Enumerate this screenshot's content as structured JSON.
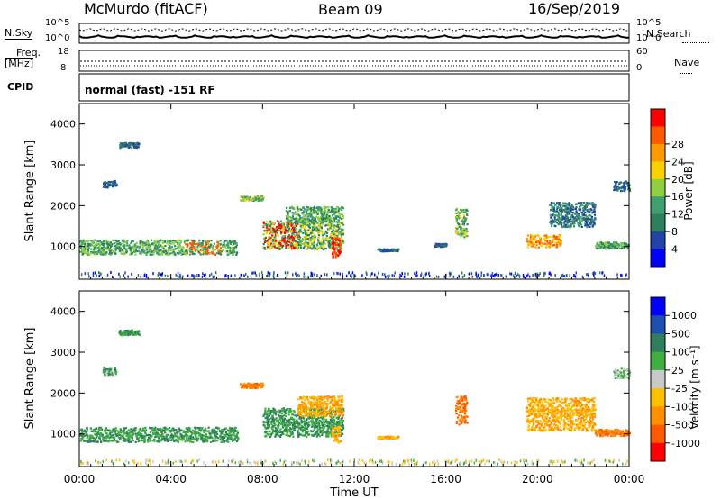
{
  "header": {
    "station": "McMurdo (fitACF)",
    "beam": "Beam 09",
    "date": "16/Sep/2019"
  },
  "top_panels": {
    "nsky_label": "N.Sky",
    "nsearch_label": "N.Search",
    "noise_left_ticks": [
      "10^5",
      "10^0"
    ],
    "noise_right_ticks": [
      "10^5",
      "10^0"
    ],
    "freq_label": "Freq.",
    "freq_unit": "[MHz]",
    "freq_ticks": [
      "18",
      "8"
    ],
    "nave_label": "Nave",
    "nave_ticks": [
      "60",
      "0"
    ],
    "cpid_label": "CPID",
    "cpid_text": "normal (fast) -151 RF"
  },
  "colors": {
    "power_scale": [
      "#0000ff",
      "#2244aa",
      "#2f7f5f",
      "#3f9f6f",
      "#8fd040",
      "#ffd000",
      "#ff9a00",
      "#ff5a00",
      "#ff0000"
    ],
    "velocity_scale": [
      "#0000ff",
      "#1e4fb0",
      "#2f7f5f",
      "#3fb040",
      "#c8c8c8",
      "#ffc000",
      "#ff9000",
      "#ff5a00",
      "#ff0000"
    ]
  },
  "chart_data": [
    {
      "type": "heatmap",
      "title": "",
      "xlabel": "",
      "ylabel": "Slant Range [km]",
      "x_ticks": [
        "00:00",
        "04:00",
        "08:00",
        "12:00",
        "16:00",
        "20:00",
        "00:00"
      ],
      "y_ticks": [
        "1000",
        "2000",
        "3000",
        "4000"
      ],
      "ylim": [
        200,
        4500
      ],
      "colorbar_label": "Power [dB]",
      "colorbar_ticks": [
        "4",
        "8",
        "12",
        "16",
        "20",
        "24",
        "28"
      ]
    },
    {
      "type": "heatmap",
      "title": "",
      "xlabel": "Time UT",
      "ylabel": "Slant Range [km]",
      "x_ticks": [
        "00:00",
        "04:00",
        "08:00",
        "12:00",
        "16:00",
        "20:00",
        "00:00"
      ],
      "y_ticks": [
        "1000",
        "2000",
        "3000",
        "4000"
      ],
      "ylim": [
        200,
        4500
      ],
      "colorbar_label": "Velocity [m s⁻¹]",
      "colorbar_ticks": [
        "1000",
        "500",
        "100",
        "25",
        "-25",
        "-100",
        "-500",
        "-1000"
      ]
    }
  ]
}
